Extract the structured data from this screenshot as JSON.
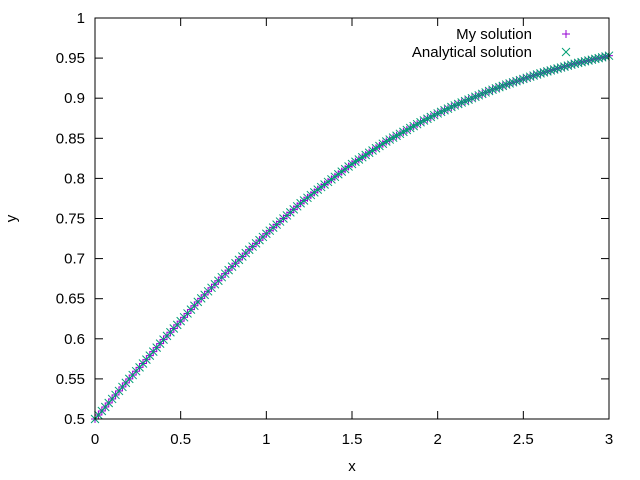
{
  "chart_data": {
    "type": "scatter",
    "title": "",
    "xlabel": "x",
    "ylabel": "y",
    "xlim": [
      0,
      3
    ],
    "ylim": [
      0.5,
      1
    ],
    "x_ticks": [
      0,
      0.5,
      1,
      1.5,
      2,
      2.5,
      3
    ],
    "y_ticks": [
      0.5,
      0.55,
      0.6,
      0.65,
      0.7,
      0.75,
      0.8,
      0.85,
      0.9,
      0.95,
      1
    ],
    "x_tick_labels": [
      "0",
      "0.5",
      "1",
      "1.5",
      "2",
      "2.5",
      "3"
    ],
    "y_tick_labels": [
      "0.5",
      "0.55",
      "0.6",
      "0.65",
      "0.7",
      "0.75",
      "0.8",
      "0.85",
      "0.9",
      "0.95",
      "1"
    ],
    "grid": false,
    "legend_position": "top-right",
    "series": [
      {
        "name": "My solution",
        "marker": "plus",
        "color": "#9400d3",
        "x": [
          0,
          0.1,
          0.2,
          0.3,
          0.4,
          0.5,
          0.6,
          0.7,
          0.8,
          0.9,
          1.0,
          1.1,
          1.2,
          1.3,
          1.4,
          1.5,
          1.6,
          1.7,
          1.8,
          1.9,
          2.0,
          2.1,
          2.2,
          2.3,
          2.4,
          2.5,
          2.6,
          2.7,
          2.8,
          2.9,
          3.0
        ],
        "y": [
          0.5,
          0.525,
          0.55,
          0.574,
          0.599,
          0.622,
          0.646,
          0.668,
          0.69,
          0.711,
          0.731,
          0.75,
          0.769,
          0.786,
          0.802,
          0.818,
          0.832,
          0.846,
          0.858,
          0.87,
          0.881,
          0.891,
          0.9,
          0.909,
          0.917,
          0.924,
          0.931,
          0.937,
          0.943,
          0.948,
          0.953
        ]
      },
      {
        "name": "Analytical solution",
        "marker": "cross",
        "color": "#009e73",
        "x": [
          0,
          0.1,
          0.2,
          0.3,
          0.4,
          0.5,
          0.6,
          0.7,
          0.8,
          0.9,
          1.0,
          1.1,
          1.2,
          1.3,
          1.4,
          1.5,
          1.6,
          1.7,
          1.8,
          1.9,
          2.0,
          2.1,
          2.2,
          2.3,
          2.4,
          2.5,
          2.6,
          2.7,
          2.8,
          2.9,
          3.0
        ],
        "y": [
          0.5,
          0.525,
          0.55,
          0.574,
          0.599,
          0.622,
          0.646,
          0.668,
          0.69,
          0.711,
          0.731,
          0.75,
          0.769,
          0.786,
          0.802,
          0.818,
          0.832,
          0.846,
          0.858,
          0.87,
          0.881,
          0.891,
          0.9,
          0.909,
          0.917,
          0.924,
          0.931,
          0.937,
          0.943,
          0.948,
          0.953
        ]
      }
    ]
  }
}
